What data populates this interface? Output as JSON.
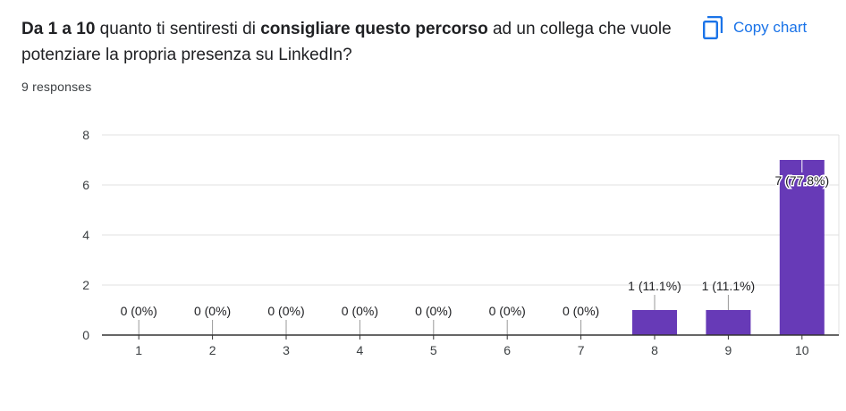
{
  "question": {
    "parts": [
      {
        "text": "Da 1 a 10",
        "bold": true
      },
      {
        "text": " quanto ti sentiresti di ",
        "bold": false
      },
      {
        "text": "consigliare questo percorso",
        "bold": true
      },
      {
        "text": " ad un collega che vuole potenziare la propria presenza su LinkedIn?",
        "bold": false
      }
    ]
  },
  "responses_text": "9 responses",
  "copy_chart": {
    "label": "Copy chart",
    "icon": "copy-icon"
  },
  "colors": {
    "bar": "#673ab7",
    "grid": "#e0e0e0",
    "axis": "#333333",
    "accent": "#1a73e8"
  },
  "chart_data": {
    "type": "bar",
    "categories": [
      "1",
      "2",
      "3",
      "4",
      "5",
      "6",
      "7",
      "8",
      "9",
      "10"
    ],
    "values": [
      0,
      0,
      0,
      0,
      0,
      0,
      0,
      1,
      1,
      7
    ],
    "labels": [
      "0 (0%)",
      "0 (0%)",
      "0 (0%)",
      "0 (0%)",
      "0 (0%)",
      "0 (0%)",
      "0 (0%)",
      "1 (11.1%)",
      "1 (11.1%)",
      "7 (77.8%)"
    ],
    "ylim": [
      0,
      8
    ],
    "yticks": [
      0,
      2,
      4,
      6,
      8
    ],
    "grid": true,
    "title": "",
    "xlabel": "",
    "ylabel": ""
  }
}
